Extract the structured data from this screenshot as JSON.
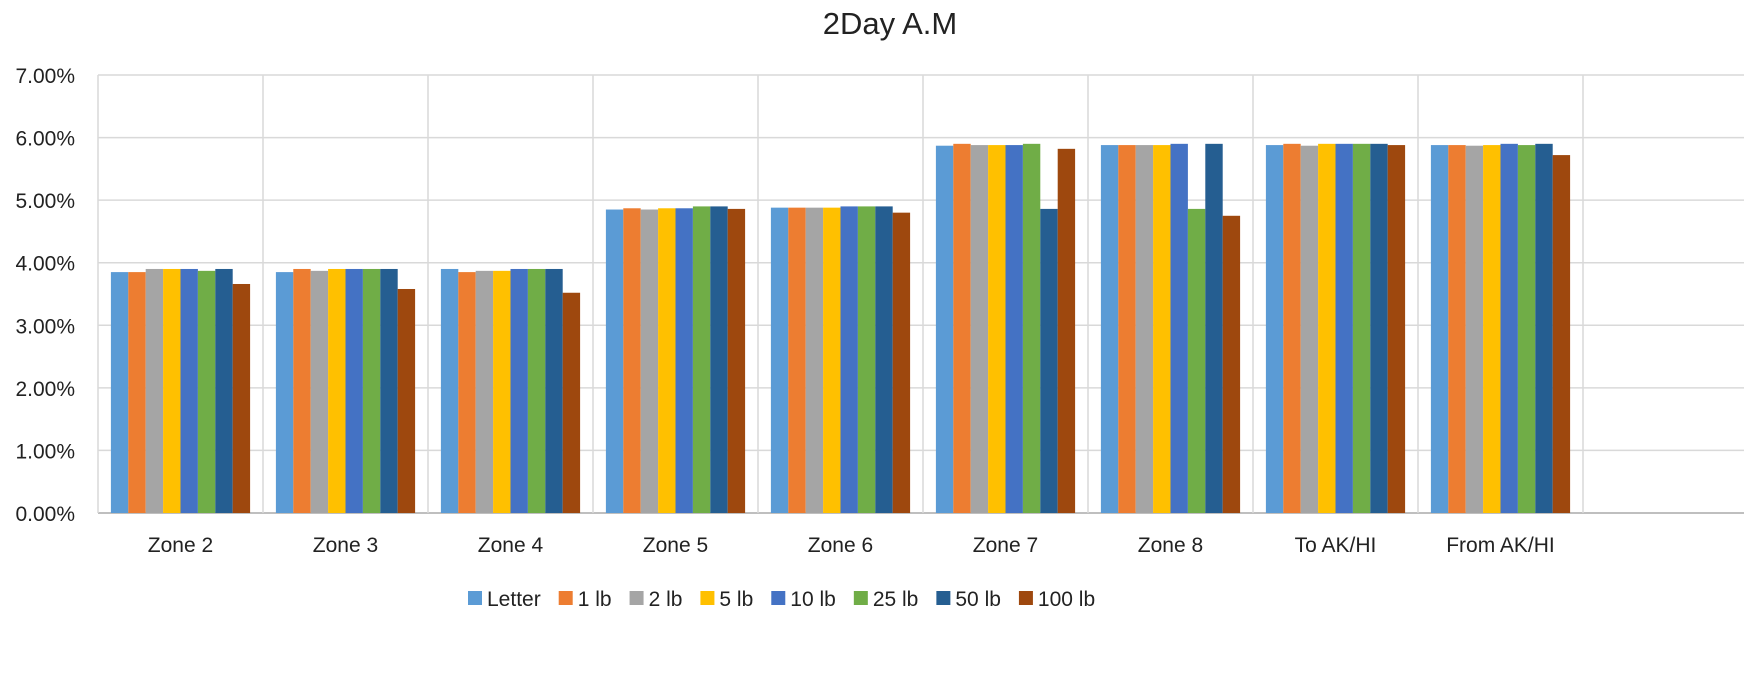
{
  "chart_data": {
    "type": "bar",
    "title": "2Day A.M",
    "xlabel": "",
    "ylabel": "",
    "ylim": [
      0,
      0.07
    ],
    "y_ticks": [
      "0.00%",
      "1.00%",
      "2.00%",
      "3.00%",
      "4.00%",
      "5.00%",
      "6.00%",
      "7.00%"
    ],
    "grid": true,
    "legend_position": "bottom",
    "categories": [
      "Zone 2",
      "Zone 3",
      "Zone 4",
      "Zone 5",
      "Zone 6",
      "Zone 7",
      "Zone 8",
      "To AK/HI",
      "From AK/HI"
    ],
    "series": [
      {
        "name": "Letter",
        "color": "#5B9BD5",
        "values": [
          0.0385,
          0.0385,
          0.039,
          0.0485,
          0.0488,
          0.0587,
          0.0588,
          0.0588,
          0.0588
        ]
      },
      {
        "name": "1 lb",
        "color": "#ED7D31",
        "values": [
          0.0385,
          0.039,
          0.0385,
          0.0487,
          0.0488,
          0.059,
          0.0588,
          0.059,
          0.0588
        ]
      },
      {
        "name": "2 lb",
        "color": "#A5A5A5",
        "values": [
          0.039,
          0.0387,
          0.0387,
          0.0485,
          0.0488,
          0.0588,
          0.0588,
          0.0587,
          0.0587
        ]
      },
      {
        "name": "5 lb",
        "color": "#FFC000",
        "values": [
          0.039,
          0.039,
          0.0387,
          0.0487,
          0.0488,
          0.0588,
          0.0588,
          0.059,
          0.0588
        ]
      },
      {
        "name": "10 lb",
        "color": "#4472C4",
        "values": [
          0.039,
          0.039,
          0.039,
          0.0487,
          0.049,
          0.0588,
          0.059,
          0.059,
          0.059
        ]
      },
      {
        "name": "25 lb",
        "color": "#70AD47",
        "values": [
          0.0387,
          0.039,
          0.039,
          0.049,
          0.049,
          0.059,
          0.0486,
          0.059,
          0.0588
        ]
      },
      {
        "name": "50 lb",
        "color": "#255E91",
        "values": [
          0.039,
          0.039,
          0.039,
          0.049,
          0.049,
          0.0486,
          0.059,
          0.059,
          0.059
        ]
      },
      {
        "name": "100 lb",
        "color": "#9E480E",
        "values": [
          0.0366,
          0.0358,
          0.0352,
          0.0486,
          0.048,
          0.0582,
          0.0475,
          0.0588,
          0.0572
        ]
      }
    ]
  }
}
